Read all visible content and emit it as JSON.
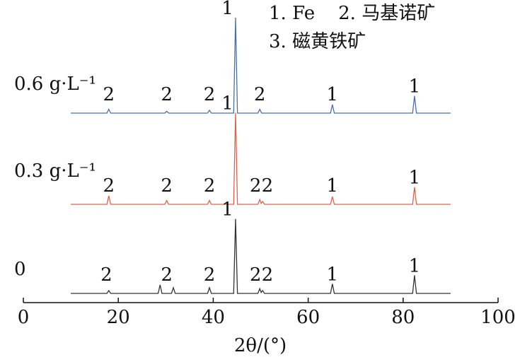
{
  "chart_data": {
    "type": "line",
    "x_label": "2θ/(°)",
    "legend_lines": [
      "1. Fe    2. 马基诺矿",
      "3. 磁黄铁矿"
    ],
    "xlim": [
      0,
      100
    ],
    "xticks": [
      0,
      20,
      40,
      60,
      80,
      100
    ],
    "series": [
      {
        "name": "0.6 g·L⁻¹",
        "color": "#4a6fa8",
        "x": [
          10,
          17.6,
          18,
          18.4,
          29.8,
          30.2,
          30.6,
          38.8,
          39.2,
          39.6,
          44.3,
          44.7,
          45.1,
          49.4,
          49.8,
          50.2,
          64.7,
          65.1,
          65.5,
          82,
          82.4,
          82.8,
          90
        ],
        "values": [
          0,
          0,
          4,
          0,
          0,
          2,
          0,
          0,
          3,
          0,
          0,
          100,
          0,
          0,
          4,
          0,
          0,
          9,
          0,
          0,
          18,
          0,
          0
        ],
        "peak_labels": [
          {
            "x": 18,
            "label": "2"
          },
          {
            "x": 30.2,
            "label": "2"
          },
          {
            "x": 39.2,
            "label": "2"
          },
          {
            "x": 49.8,
            "label": "2"
          },
          {
            "x": 43,
            "label": "1"
          },
          {
            "x": 65.1,
            "label": "1"
          },
          {
            "x": 82.4,
            "label": "1"
          }
        ]
      },
      {
        "name": "0.3 g·L⁻¹",
        "color": "#d9644e",
        "x": [
          10,
          17.6,
          18,
          18.4,
          29.8,
          30.2,
          30.6,
          38.8,
          39.2,
          39.6,
          44.3,
          44.7,
          45.1,
          49.4,
          49.8,
          50.1,
          50.4,
          50.8,
          64.7,
          65.1,
          65.5,
          82,
          82.4,
          82.8,
          90
        ],
        "values": [
          0,
          0,
          9,
          0,
          0,
          4,
          0,
          0,
          4,
          0,
          0,
          96,
          0,
          0,
          5,
          1,
          3,
          0,
          0,
          8,
          0,
          0,
          18,
          0,
          0
        ],
        "peak_labels": [
          {
            "x": 18,
            "label": "2"
          },
          {
            "x": 30.2,
            "label": "2"
          },
          {
            "x": 39.2,
            "label": "2"
          },
          {
            "x": 48.9,
            "label": "2"
          },
          {
            "x": 51.4,
            "label": "2"
          },
          {
            "x": 43,
            "label": "1"
          },
          {
            "x": 65.1,
            "label": "1"
          },
          {
            "x": 82.4,
            "label": "1"
          }
        ]
      },
      {
        "name": "0",
        "color": "#333333",
        "x": [
          10,
          17.6,
          18,
          18.4,
          28.4,
          28.8,
          29.2,
          31.2,
          31.6,
          32,
          38.8,
          39.2,
          39.6,
          44.3,
          44.7,
          45.1,
          49.4,
          49.8,
          50.1,
          50.4,
          50.8,
          64.7,
          65.1,
          65.5,
          82,
          82.4,
          82.8,
          90
        ],
        "values": [
          0,
          0,
          3,
          0,
          0,
          9,
          0,
          0,
          6,
          0,
          0,
          6,
          0,
          0,
          78,
          0,
          0,
          5,
          1,
          3,
          0,
          0,
          10,
          0,
          0,
          19,
          0,
          0
        ],
        "peak_labels": [
          {
            "x": 17.5,
            "label": "2"
          },
          {
            "x": 30.2,
            "label": "2"
          },
          {
            "x": 39.2,
            "label": "2"
          },
          {
            "x": 48.9,
            "label": "2"
          },
          {
            "x": 51.4,
            "label": "2"
          },
          {
            "x": 43,
            "label": "1"
          },
          {
            "x": 65.1,
            "label": "1"
          },
          {
            "x": 82.4,
            "label": "1"
          }
        ]
      }
    ]
  }
}
